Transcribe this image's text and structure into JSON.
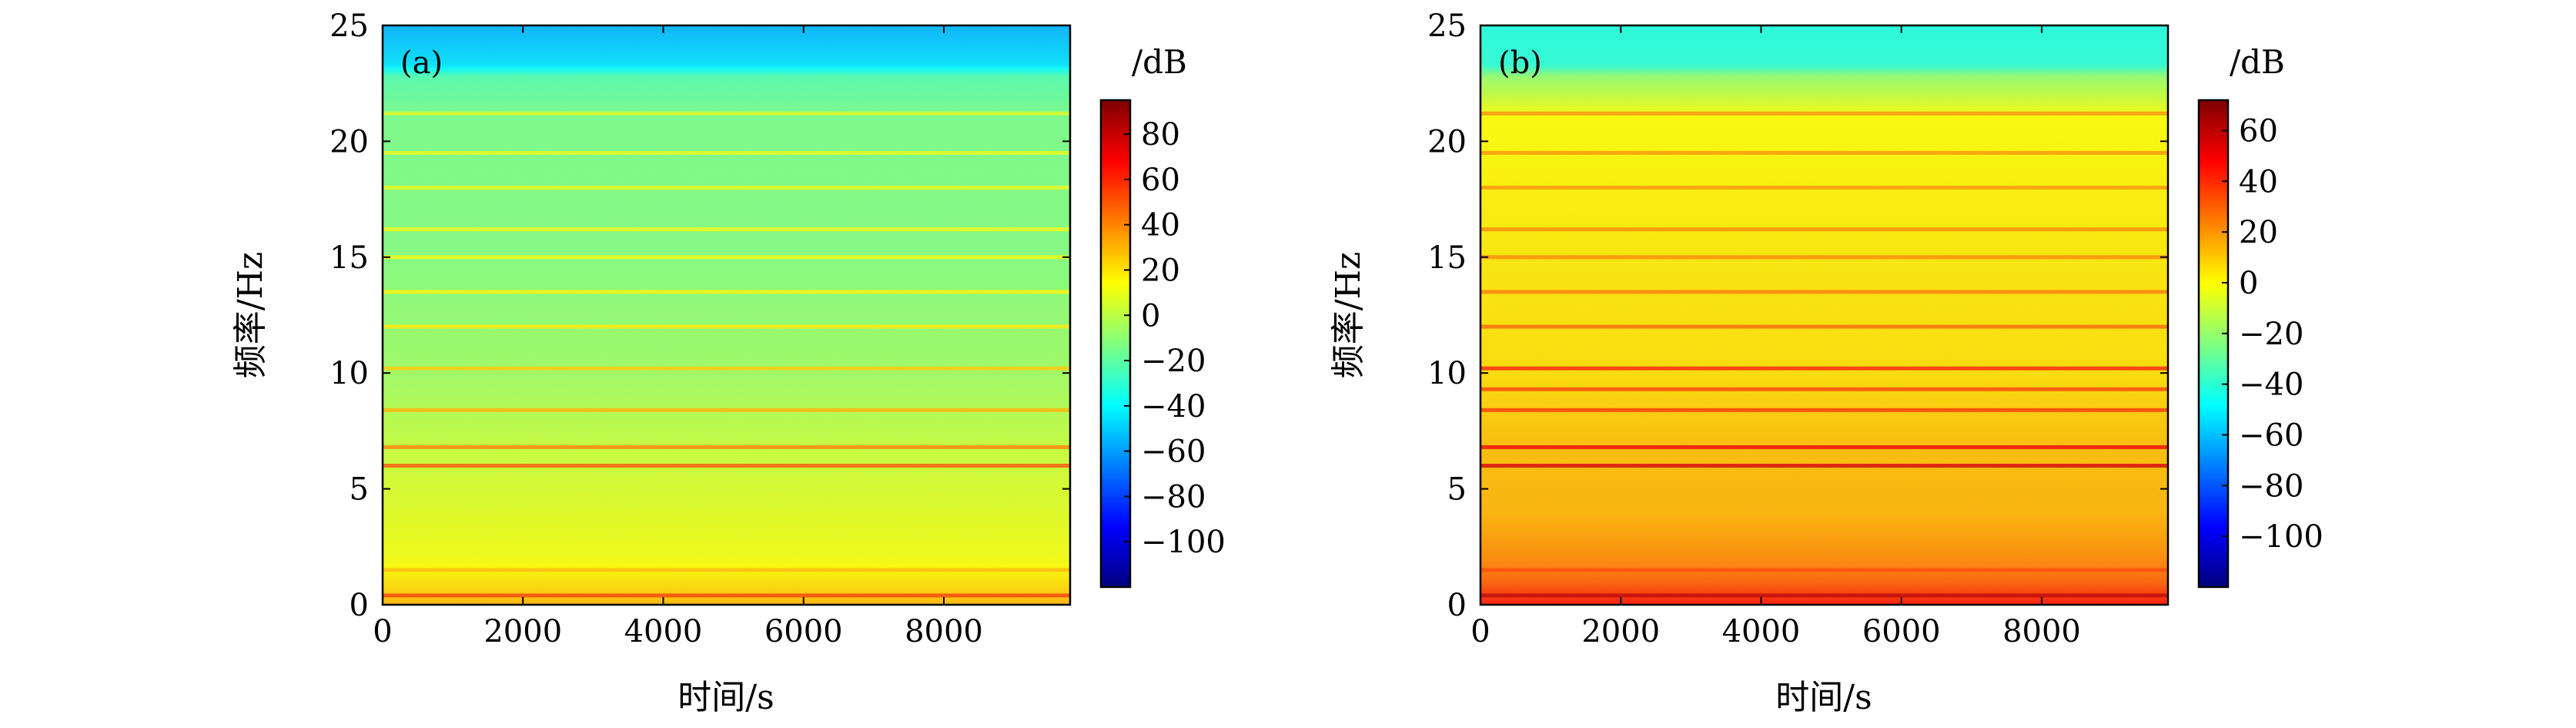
{
  "chart_data": [
    {
      "type": "heatmap",
      "panel_label": "(a)",
      "xlabel": "时间/s",
      "ylabel": "频率/Hz",
      "xlim": [
        0,
        9800
      ],
      "ylim": [
        0,
        25
      ],
      "x_ticks": [
        0,
        2000,
        4000,
        6000,
        8000
      ],
      "y_ticks": [
        0,
        5,
        10,
        15,
        20,
        25
      ],
      "colorbar": {
        "label": "/dB",
        "range": [
          -120,
          95
        ],
        "ticks": [
          -100,
          -80,
          -60,
          -40,
          -20,
          0,
          20,
          40,
          60,
          80
        ],
        "colormap": "jet"
      },
      "background_profile": [
        {
          "f": 0,
          "db": 30
        },
        {
          "f": 1,
          "db": 20
        },
        {
          "f": 2,
          "db": 12
        },
        {
          "f": 4,
          "db": 8
        },
        {
          "f": 7,
          "db": 2
        },
        {
          "f": 10,
          "db": -6
        },
        {
          "f": 15,
          "db": -12
        },
        {
          "f": 21,
          "db": -14
        },
        {
          "f": 22.8,
          "db": -22
        },
        {
          "f": 23.3,
          "db": -45
        },
        {
          "f": 25,
          "db": -55
        }
      ],
      "tonal_lines": [
        {
          "f": 0.4,
          "db": 55
        },
        {
          "f": 1.5,
          "db": 28
        },
        {
          "f": 6.0,
          "db": 50
        },
        {
          "f": 6.8,
          "db": 40
        },
        {
          "f": 8.4,
          "db": 30
        },
        {
          "f": 10.2,
          "db": 25
        },
        {
          "f": 12.0,
          "db": 18
        },
        {
          "f": 13.5,
          "db": 15
        },
        {
          "f": 15.0,
          "db": 12
        },
        {
          "f": 16.2,
          "db": 12
        },
        {
          "f": 18.0,
          "db": 10
        },
        {
          "f": 19.5,
          "db": 10
        },
        {
          "f": 21.2,
          "db": 8
        }
      ]
    },
    {
      "type": "heatmap",
      "panel_label": "(b)",
      "xlabel": "时间/s",
      "ylabel": "频率/Hz",
      "xlim": [
        0,
        9800
      ],
      "ylim": [
        0,
        25
      ],
      "x_ticks": [
        0,
        2000,
        4000,
        6000,
        8000
      ],
      "y_ticks": [
        0,
        5,
        10,
        15,
        20,
        25
      ],
      "colorbar": {
        "label": "/dB",
        "range": [
          -120,
          72
        ],
        "ticks": [
          -100,
          -80,
          -60,
          -40,
          -20,
          0,
          20,
          40,
          60
        ],
        "colormap": "jet"
      },
      "background_profile": [
        {
          "f": 0,
          "db": 45
        },
        {
          "f": 1,
          "db": 30
        },
        {
          "f": 2,
          "db": 22
        },
        {
          "f": 4,
          "db": 14
        },
        {
          "f": 7,
          "db": 12
        },
        {
          "f": 10,
          "db": 6
        },
        {
          "f": 15,
          "db": 4
        },
        {
          "f": 21,
          "db": 0
        },
        {
          "f": 22.8,
          "db": -20
        },
        {
          "f": 23.3,
          "db": -40
        },
        {
          "f": 25,
          "db": -42
        }
      ],
      "tonal_lines": [
        {
          "f": 0.4,
          "db": 60
        },
        {
          "f": 1.5,
          "db": 35
        },
        {
          "f": 6.0,
          "db": 55
        },
        {
          "f": 6.8,
          "db": 48
        },
        {
          "f": 8.4,
          "db": 38
        },
        {
          "f": 9.3,
          "db": 35
        },
        {
          "f": 10.2,
          "db": 42
        },
        {
          "f": 12.0,
          "db": 28
        },
        {
          "f": 13.5,
          "db": 25
        },
        {
          "f": 15.0,
          "db": 22
        },
        {
          "f": 16.2,
          "db": 22
        },
        {
          "f": 18.0,
          "db": 20
        },
        {
          "f": 19.5,
          "db": 20
        },
        {
          "f": 21.2,
          "db": 20
        }
      ]
    }
  ]
}
